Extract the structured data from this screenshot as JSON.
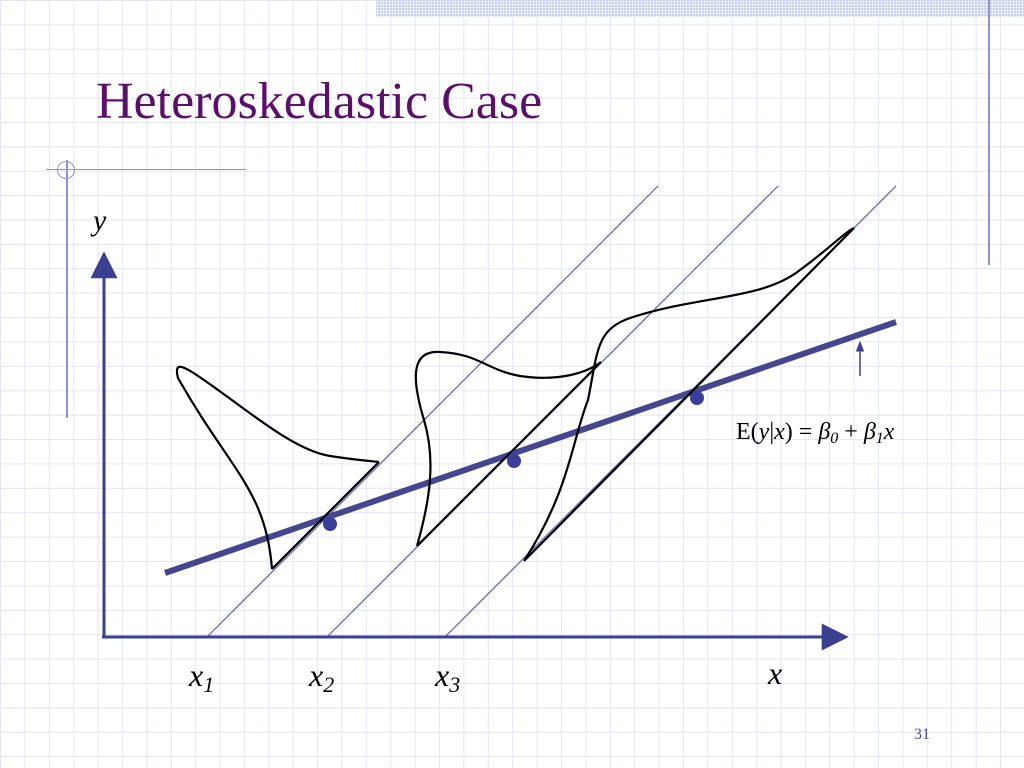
{
  "title": "Heteroskedastic Case",
  "page_number": "31",
  "colors": {
    "title": "#5a0f6a",
    "axes": "#3b3f8f",
    "regression_line": "#45468f",
    "guide_lines": "#5b62b8",
    "curves": "#000000",
    "points": "#3a3d9a"
  },
  "axes": {
    "y_label": "y",
    "x_label": "x",
    "ticks": [
      {
        "base": "x",
        "sub": "1"
      },
      {
        "base": "x",
        "sub": "2"
      },
      {
        "base": "x",
        "sub": "3"
      }
    ]
  },
  "annotation": {
    "parts": [
      {
        "t": "E(",
        "i": false,
        "sub": false
      },
      {
        "t": "y",
        "i": true,
        "sub": false
      },
      {
        "t": "|",
        "i": false,
        "sub": false
      },
      {
        "t": "x",
        "i": true,
        "sub": false
      },
      {
        "t": ") = ",
        "i": false,
        "sub": false
      },
      {
        "t": "β",
        "i": true,
        "sub": false
      },
      {
        "t": "0",
        "i": true,
        "sub": true
      },
      {
        "t": " + ",
        "i": false,
        "sub": false
      },
      {
        "t": "β",
        "i": true,
        "sub": false
      },
      {
        "t": "1",
        "i": true,
        "sub": true
      },
      {
        "t": "x",
        "i": true,
        "sub": false
      }
    ]
  }
}
